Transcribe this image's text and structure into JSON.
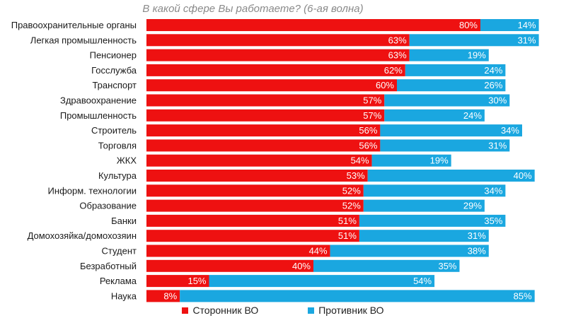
{
  "chart_data": {
    "type": "bar",
    "orientation": "horizontal",
    "stacked": true,
    "title": "В какой сфере Вы работаете? (6-ая волна)",
    "categories": [
      "Правоохранительные органы",
      "Легкая промышленность",
      "Пенсионер",
      "Госслужба",
      "Транспорт",
      "Здравоохранение",
      "Промышленность",
      "Строитель",
      "Торговля",
      "ЖКХ",
      "Культура",
      "Информ. технологии",
      "Образование",
      "Банки",
      "Домохозяйка/домохозяин",
      "Студент",
      "Безработный",
      "Реклама",
      "Наука"
    ],
    "series": [
      {
        "name": "Сторонник ВО",
        "color": "#ee1111",
        "values": [
          80,
          63,
          63,
          62,
          60,
          57,
          57,
          56,
          56,
          54,
          53,
          52,
          52,
          51,
          51,
          44,
          40,
          15,
          8
        ]
      },
      {
        "name": "Противник ВО",
        "color": "#1aa7e0",
        "values": [
          14,
          31,
          19,
          24,
          26,
          30,
          24,
          34,
          31,
          19,
          40,
          34,
          29,
          35,
          31,
          38,
          35,
          54,
          85
        ]
      }
    ],
    "value_suffix": "%",
    "xlim": [
      0,
      100
    ],
    "grid": false,
    "legend_position": "bottom"
  }
}
